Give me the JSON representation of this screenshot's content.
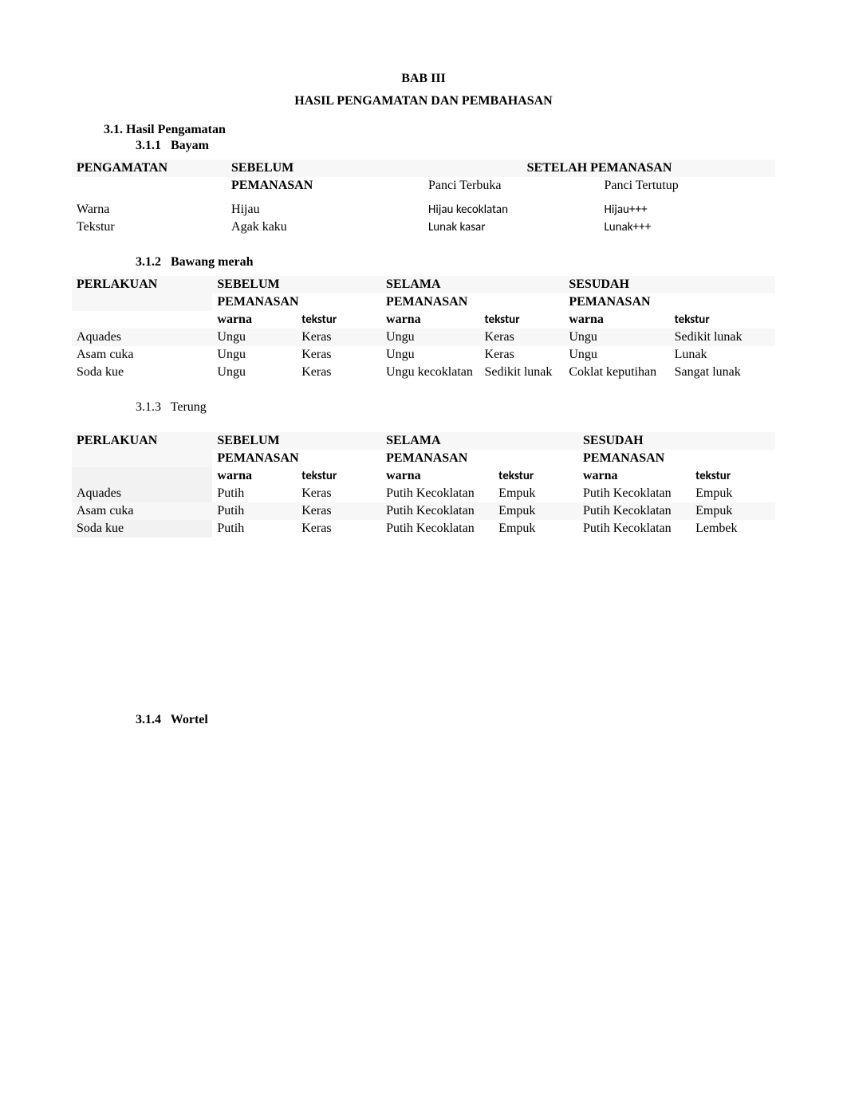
{
  "chapter": {
    "title": "BAB III",
    "subtitle": "HASIL PENGAMATAN DAN PEMBAHASAN"
  },
  "sec31": {
    "num": "3.1.",
    "title": "Hasil Pengamatan"
  },
  "sec311": {
    "num": "3.1.1",
    "title": "Bayam"
  },
  "tbl1": {
    "head": {
      "c1": "PENGAMATAN",
      "c2a": "SEBELUM",
      "c2b": "PEMANASAN",
      "c34": "SETELAH PEMANASAN",
      "c3": "Panci Terbuka",
      "c4": "Panci Tertutup"
    },
    "rows": [
      {
        "c1": "Warna",
        "c2": "Hijau",
        "c3": "Hijau kecoklatan",
        "c4": "Hijau+++"
      },
      {
        "c1": "Tekstur",
        "c2": "Agak kaku",
        "c3": "Lunak kasar",
        "c4": "Lunak+++"
      }
    ]
  },
  "sec312": {
    "num": "3.1.2",
    "title": "Bawang merah"
  },
  "tbl2": {
    "head": {
      "c1": "PERLAKUAN",
      "g1a": "SEBELUM",
      "g1b": "PEMANASAN",
      "g2a": "SELAMA",
      "g2b": "PEMANASAN",
      "g3a": "SESUDAH",
      "g3b": "PEMANASAN",
      "warna": "warna",
      "tekstur": "tekstur"
    },
    "rows": [
      {
        "c1": "Aquades",
        "c2": "Ungu",
        "c3": "Keras",
        "c4": "Ungu",
        "c5": "Keras",
        "c6": "Ungu",
        "c7": "Sedikit lunak"
      },
      {
        "c1": "Asam cuka",
        "c2": "Ungu",
        "c3": "Keras",
        "c4": "Ungu",
        "c5": "Keras",
        "c6": "Ungu",
        "c7": "Lunak"
      },
      {
        "c1": "Soda kue",
        "c2": "Ungu",
        "c3": "Keras",
        "c4": "Ungu kecoklatan",
        "c5": "Sedikit lunak",
        "c6": "Coklat keputihan",
        "c7": "Sangat lunak"
      }
    ]
  },
  "sec313": {
    "num": "3.1.3",
    "title": "Terung"
  },
  "tbl3": {
    "head": {
      "c1": "PERLAKUAN",
      "g1a": "SEBELUM",
      "g1b": "PEMANASAN",
      "g2a": "SELAMA",
      "g2b": "PEMANASAN",
      "g3a": "SESUDAH",
      "g3b": "PEMANASAN",
      "warna": "warna",
      "tekstur": "tekstur"
    },
    "rows": [
      {
        "c1": "Aquades",
        "c2": "Putih",
        "c3": "Keras",
        "c4": "Putih Kecoklatan",
        "c5": "Empuk",
        "c6": "Putih Kecoklatan",
        "c7": "Empuk"
      },
      {
        "c1": "Asam cuka",
        "c2": "Putih",
        "c3": "Keras",
        "c4": "Putih Kecoklatan",
        "c5": "Empuk",
        "c6": "Putih Kecoklatan",
        "c7": "Empuk"
      },
      {
        "c1": "Soda kue",
        "c2": "Putih",
        "c3": "Keras",
        "c4": "Putih Kecoklatan",
        "c5": "Empuk",
        "c6": "Putih Kecoklatan",
        "c7": "Lembek"
      }
    ]
  },
  "sec314": {
    "num": "3.1.4",
    "title": "Wortel"
  },
  "colors": {
    "text": "#000000",
    "background": "#ffffff",
    "shade": "#f2f2f2",
    "rowshade": "#f7f7f7"
  },
  "fonts": {
    "body_family": "Times New Roman",
    "body_size_pt": 12,
    "sans_family": "Calibri",
    "sans_size_pt": 11
  }
}
